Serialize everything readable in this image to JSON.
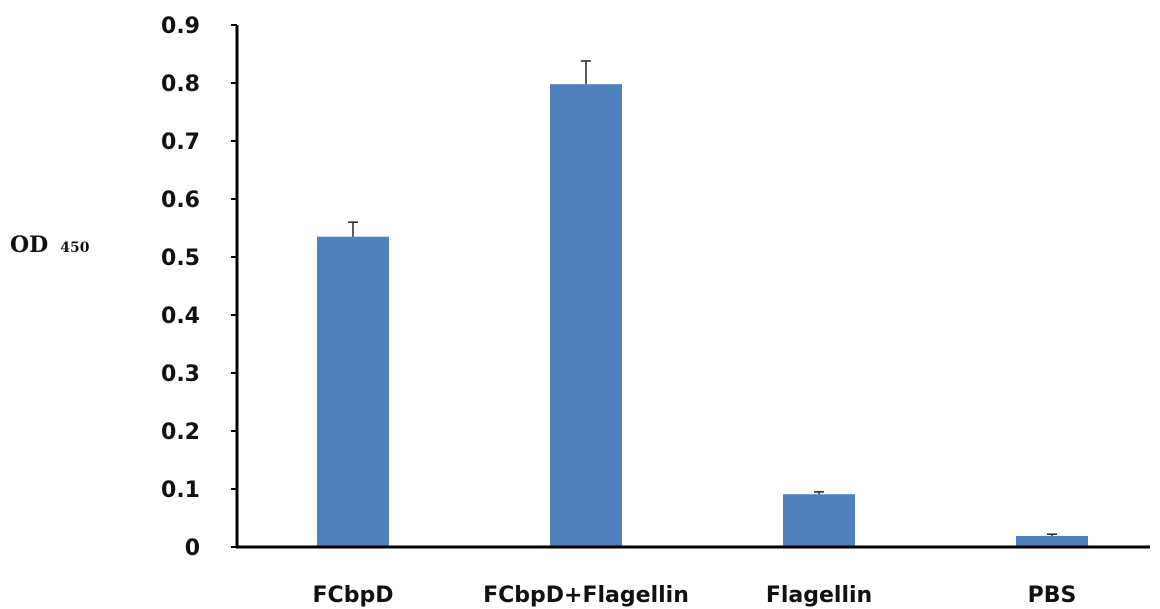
{
  "chart_data": {
    "type": "bar",
    "title": "",
    "xlabel": "",
    "ylabel_main": "OD",
    "ylabel_sub": "450",
    "categories": [
      "FCbpD",
      "FCbpD+Flagellin",
      "Flagellin",
      "PBS"
    ],
    "values": [
      0.535,
      0.798,
      0.091,
      0.019
    ],
    "errors": [
      0.025,
      0.04,
      0.004,
      0.003
    ],
    "ylim": [
      0,
      0.9
    ],
    "yticks": [
      "0",
      "0.1",
      "0.2",
      "0.3",
      "0.4",
      "0.5",
      "0.6",
      "0.7",
      "0.8",
      "0.9"
    ],
    "grid": false,
    "bar_color": "#4f81bd"
  }
}
